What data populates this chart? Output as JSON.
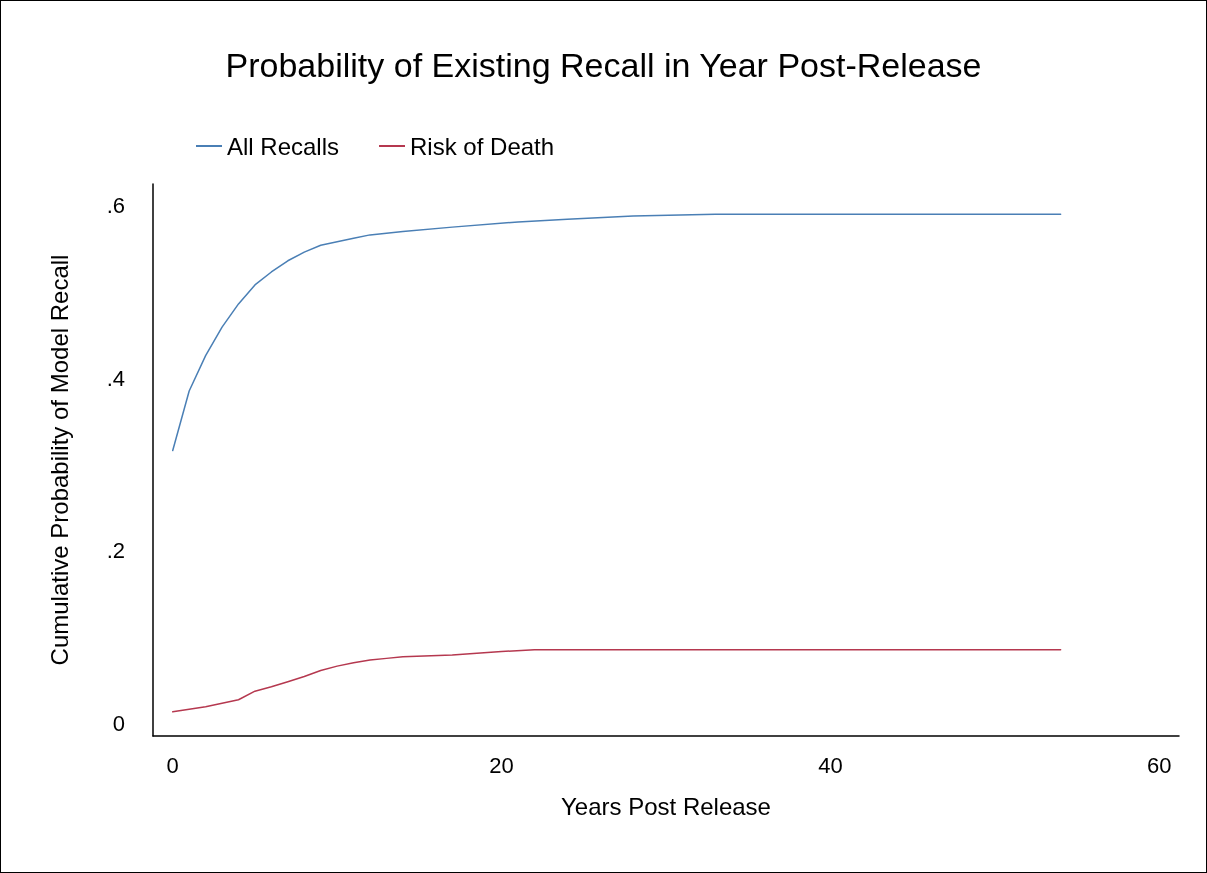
{
  "chart_data": {
    "type": "line",
    "title": "Probability of Existing Recall in Year Post-Release",
    "xlabel": "Years Post Release",
    "ylabel": "Cumulative Probability of Model Recall",
    "legend": "top left",
    "grid": false,
    "marker": "none",
    "line_style": "solid",
    "xlim": [
      -1.2,
      61.2
    ],
    "xticks": [
      0,
      20,
      40,
      60
    ],
    "ylim": [
      -0.015,
      0.625
    ],
    "yticks": [
      {
        "value": 0,
        "label": "0"
      },
      {
        "value": 0.2,
        "label": ".2"
      },
      {
        "value": 0.4,
        "label": ".4"
      },
      {
        "value": 0.6,
        "label": ".6"
      }
    ],
    "series": [
      {
        "name": "All Recalls",
        "color": "#4a7fb5",
        "x": [
          0,
          1,
          2,
          3,
          4,
          5,
          6,
          7,
          8,
          9,
          10,
          11,
          12,
          14,
          17,
          21,
          24,
          28,
          33,
          54
        ],
        "values": [
          0.316,
          0.385,
          0.426,
          0.459,
          0.486,
          0.508,
          0.523,
          0.536,
          0.546,
          0.554,
          0.558,
          0.562,
          0.566,
          0.57,
          0.575,
          0.581,
          0.584,
          0.588,
          0.59,
          0.59
        ]
      },
      {
        "name": "Risk of Death",
        "color": "#b5384f",
        "x": [
          0,
          2,
          3,
          4,
          5,
          6,
          7,
          8,
          9,
          10,
          11,
          12,
          13,
          14,
          17,
          20,
          22,
          54
        ],
        "values": [
          0.013,
          0.019,
          0.023,
          0.027,
          0.037,
          0.042,
          0.048,
          0.054,
          0.061,
          0.066,
          0.07,
          0.073,
          0.075,
          0.077,
          0.079,
          0.083,
          0.085,
          0.085
        ]
      }
    ]
  }
}
